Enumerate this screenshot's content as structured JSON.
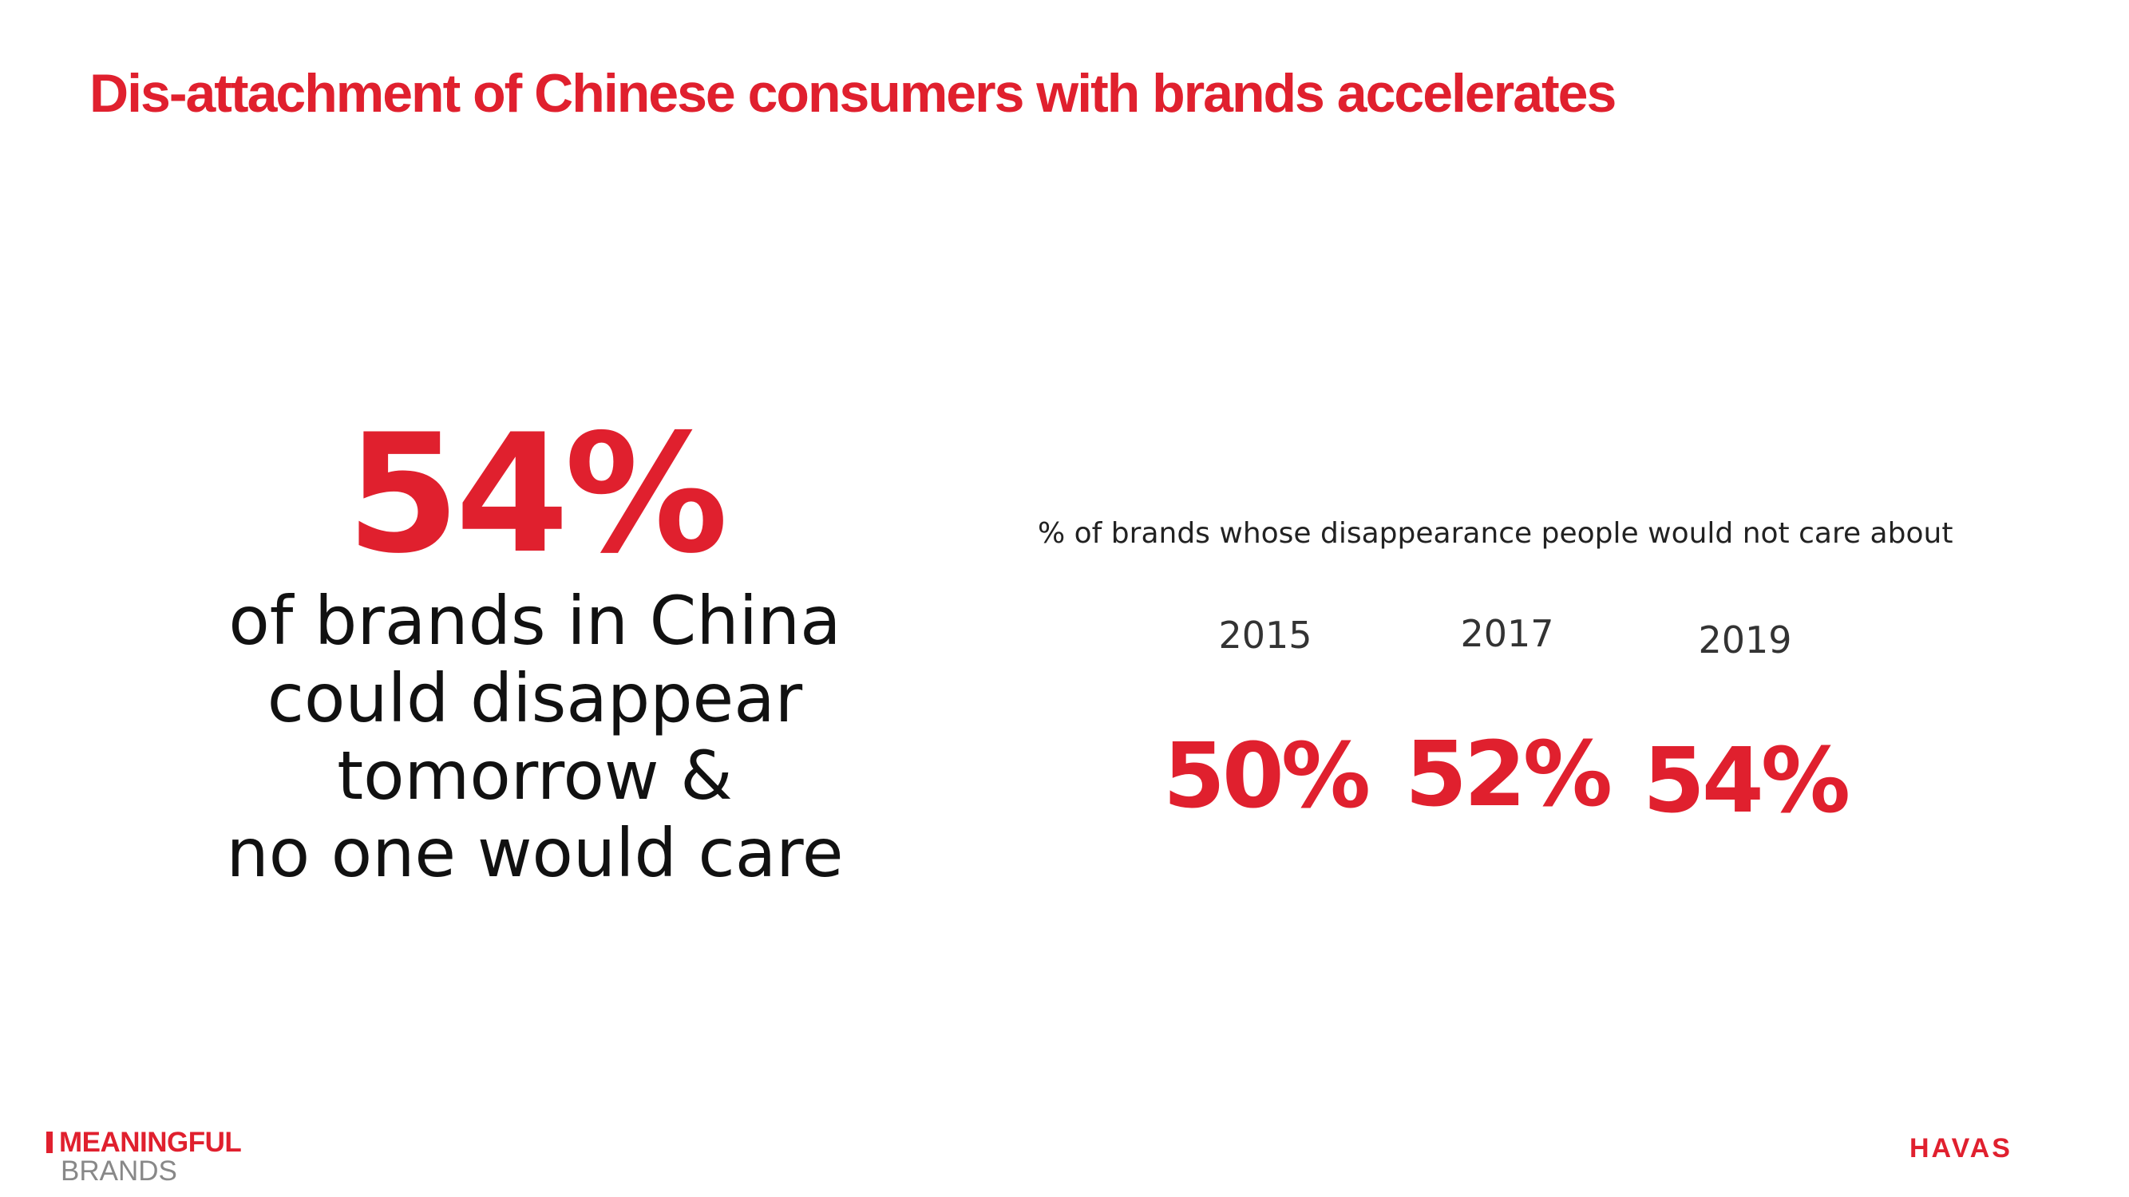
{
  "slide": {
    "title": "Dis-attachment of Chinese consumers with brands accelerates"
  },
  "hero": {
    "value": "54%",
    "lines": [
      "of brands in China",
      "could disappear",
      "tomorrow &",
      "no one would care"
    ]
  },
  "chart_data": {
    "type": "table",
    "title": "% of brands whose disappearance people would not care about",
    "categories": [
      "2015",
      "2017",
      "2019"
    ],
    "values": [
      50,
      52,
      54
    ],
    "labels": [
      "50%",
      "52%",
      "54%"
    ]
  },
  "footer": {
    "logo_left_line1": "MEANINGFUL",
    "logo_left_line2": "BRANDS",
    "logo_right": "HAVAS"
  },
  "colors": {
    "accent": "#e0202e",
    "text": "#111111",
    "muted": "#888888"
  }
}
